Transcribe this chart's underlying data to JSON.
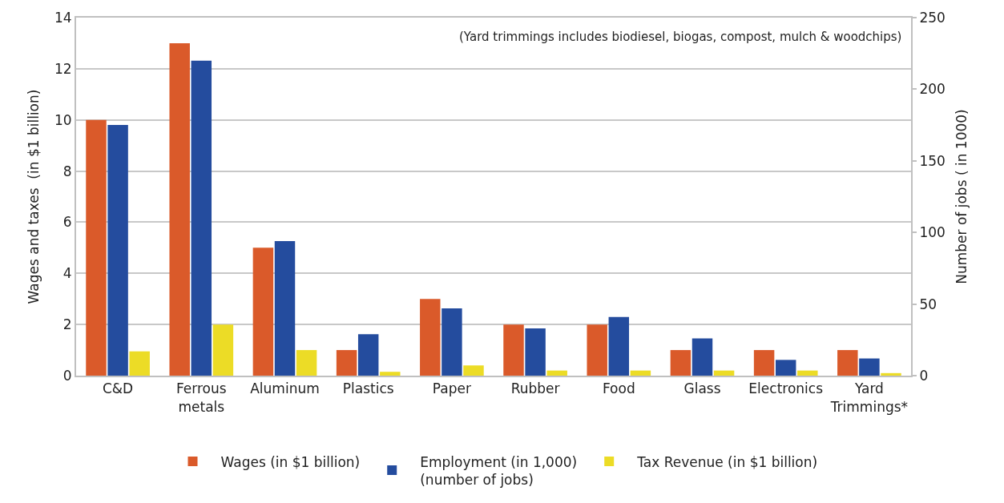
{
  "chart_data": {
    "type": "bar",
    "categories": [
      "C&D",
      "Ferrous\nmetals",
      "Aluminum",
      "Plastics",
      "Paper",
      "Rubber",
      "Food",
      "Glass",
      "Electronics",
      "Yard\nTrimmings*"
    ],
    "series": [
      {
        "name": "Wages (in $1 billion)",
        "color": "#da5a2a",
        "values": [
          10,
          13,
          5,
          1,
          3,
          2,
          2,
          1,
          1,
          1
        ]
      },
      {
        "name": "Employment (in 1,000)\n(number of jobs)",
        "color": "#244c9e",
        "axis": "y2",
        "values": [
          175,
          220,
          94,
          29,
          47,
          33,
          41,
          26,
          11,
          12
        ]
      },
      {
        "name": "Tax Revenue (in $1 billion)",
        "color": "#ecdc26",
        "values": [
          0.95,
          2,
          1,
          0.15,
          0.4,
          0.2,
          0.2,
          0.2,
          0.2,
          0.1
        ]
      }
    ],
    "ylabel": "Wages and taxes  (in $1 billion)",
    "y2label": "Number of jobs ( in 1000)",
    "ylim": [
      0,
      14
    ],
    "yticks": [
      0,
      2,
      4,
      6,
      8,
      10,
      12,
      14
    ],
    "y2lim": [
      0,
      250
    ],
    "y2ticks": [
      0,
      50,
      100,
      150,
      200,
      250
    ],
    "annotations": [
      "(Yard trimmings includes biodiesel, biogas, compost, mulch & woodchips)"
    ],
    "grid": "y",
    "legend": "bottom"
  }
}
